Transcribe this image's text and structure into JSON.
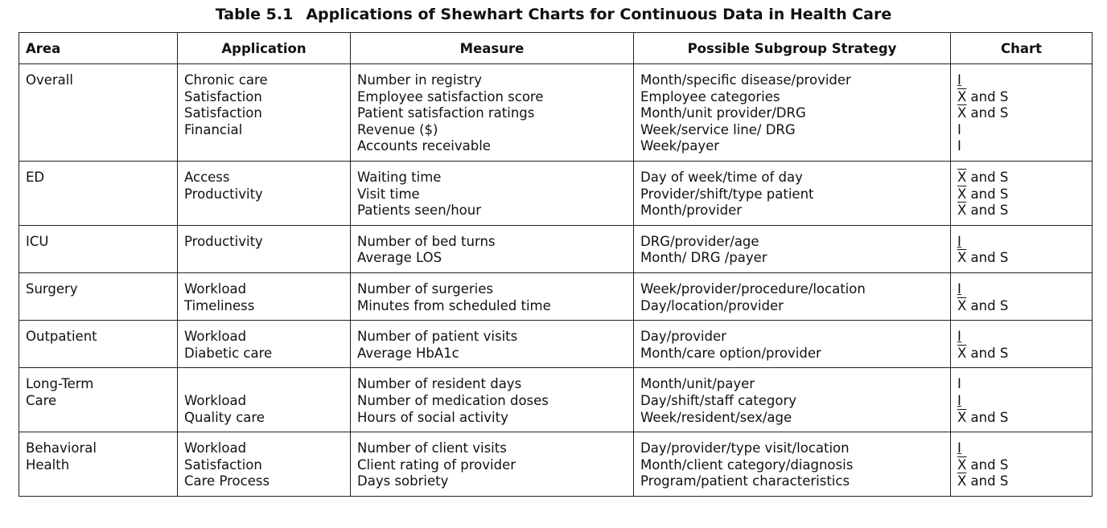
{
  "title": {
    "number": "Table 5.1",
    "text": "Applications of Shewhart Charts for Continuous Data in Health Care"
  },
  "headers": {
    "area": "Area",
    "application": "Application",
    "measure": "Measure",
    "strategy": "Possible Subgroup Strategy",
    "chart": "Chart"
  },
  "rows": [
    {
      "area": [
        "Overall",
        "",
        "",
        "",
        ""
      ],
      "application": [
        "Chronic care",
        "Satisfaction",
        "Satisfaction",
        "Financial",
        ""
      ],
      "measure": [
        "Number in registry",
        "Employee satisfaction score",
        "Patient satisfaction ratings",
        "Revenue ($)",
        "Accounts receivable"
      ],
      "strategy": [
        "Month/specific disease/provider",
        "Employee categories",
        "Month/unit provider/DRG",
        "Week/service line/ DRG",
        "Week/payer"
      ],
      "chart": [
        {
          "symbol": "I",
          "mark": "ibar",
          "rest": ""
        },
        {
          "symbol": "X",
          "mark": "xbar",
          "rest": " and S"
        },
        {
          "symbol": "X",
          "mark": "xbar",
          "rest": " and S"
        },
        {
          "symbol": "I",
          "mark": "",
          "rest": ""
        },
        {
          "symbol": "I",
          "mark": "",
          "rest": ""
        }
      ]
    },
    {
      "area": [
        "ED",
        "",
        ""
      ],
      "application": [
        "Access",
        "Productivity",
        ""
      ],
      "measure": [
        "Waiting time",
        "Visit time",
        "Patients seen/hour"
      ],
      "strategy": [
        "Day of week/time of day",
        "Provider/shift/type patient",
        "Month/provider"
      ],
      "chart": [
        {
          "symbol": "X",
          "mark": "xbar",
          "rest": " and S"
        },
        {
          "symbol": "X",
          "mark": "xbar",
          "rest": " and S"
        },
        {
          "symbol": "X",
          "mark": "xbar",
          "rest": " and S"
        }
      ]
    },
    {
      "area": [
        "ICU",
        ""
      ],
      "application": [
        "Productivity",
        ""
      ],
      "measure": [
        "Number of bed turns",
        "Average LOS"
      ],
      "strategy": [
        "DRG/provider/age",
        "Month/ DRG /payer"
      ],
      "chart": [
        {
          "symbol": "I",
          "mark": "ibar",
          "rest": ""
        },
        {
          "symbol": "X",
          "mark": "xbar",
          "rest": " and S"
        }
      ]
    },
    {
      "area": [
        "Surgery",
        ""
      ],
      "application": [
        "Workload",
        "Timeliness"
      ],
      "measure": [
        "Number of surgeries",
        "Minutes from scheduled time"
      ],
      "strategy": [
        "Week/provider/procedure/location",
        "Day/location/provider"
      ],
      "chart": [
        {
          "symbol": "I",
          "mark": "ibar",
          "rest": ""
        },
        {
          "symbol": "X",
          "mark": "xbar",
          "rest": " and S"
        }
      ]
    },
    {
      "area": [
        "Outpatient",
        ""
      ],
      "application": [
        "Workload",
        "Diabetic care"
      ],
      "measure": [
        "Number of patient visits",
        "Average HbA1c"
      ],
      "strategy": [
        "Day/provider",
        "Month/care option/provider"
      ],
      "chart": [
        {
          "symbol": "I",
          "mark": "ibar",
          "rest": ""
        },
        {
          "symbol": "X",
          "mark": "xbar",
          "rest": " and S"
        }
      ]
    },
    {
      "area": [
        "Long-Term",
        "Care",
        ""
      ],
      "application": [
        "",
        "Workload",
        "Quality care"
      ],
      "measure": [
        "Number of resident days",
        "Number of medication doses",
        "Hours of social activity"
      ],
      "strategy": [
        "Month/unit/payer",
        "Day/shift/staff category",
        "Week/resident/sex/age"
      ],
      "chart": [
        {
          "symbol": "I",
          "mark": "",
          "rest": ""
        },
        {
          "symbol": "I",
          "mark": "ibar",
          "rest": ""
        },
        {
          "symbol": "X",
          "mark": "xbar",
          "rest": " and S"
        }
      ]
    },
    {
      "area": [
        "Behavioral",
        "Health",
        ""
      ],
      "application": [
        "Workload",
        "Satisfaction",
        "Care Process"
      ],
      "measure": [
        "Number of client visits",
        "Client rating of provider",
        "Days sobriety"
      ],
      "strategy": [
        "Day/provider/type visit/location",
        "Month/client category/diagnosis",
        "Program/patient characteristics"
      ],
      "chart": [
        {
          "symbol": "I",
          "mark": "ibar",
          "rest": ""
        },
        {
          "symbol": "X",
          "mark": "xbar",
          "rest": " and S"
        },
        {
          "symbol": "X",
          "mark": "xbar",
          "rest": " and S"
        }
      ]
    }
  ]
}
